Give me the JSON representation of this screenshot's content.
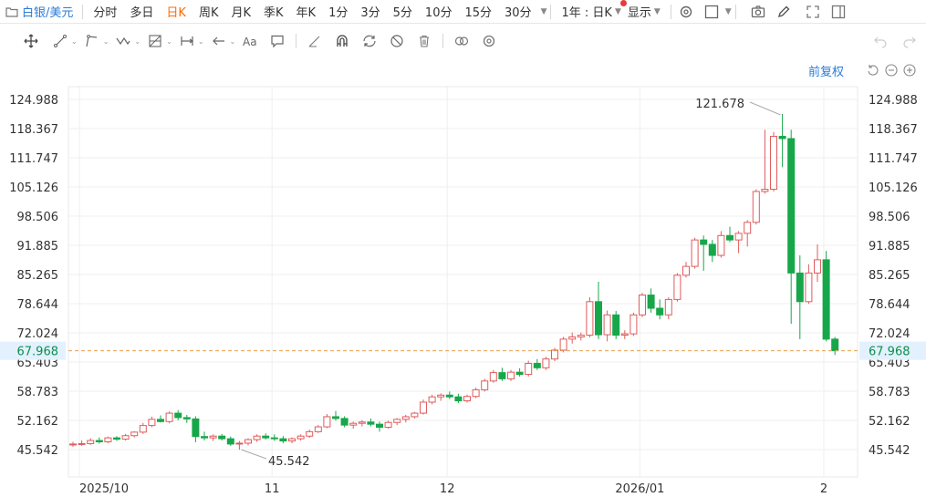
{
  "toolbar": {
    "symbol": "白银/美元",
    "timeframes": [
      "分时",
      "多日",
      "日K",
      "周K",
      "月K",
      "季K",
      "年K",
      "1分",
      "3分",
      "5分",
      "10分",
      "15分",
      "30分"
    ],
    "active_timeframe": "日K",
    "range_select": "1年 : 日K",
    "display_label": "显示"
  },
  "chart_header": {
    "adjust_label": "前复权"
  },
  "colors": {
    "up": "#e15b5b",
    "down": "#17a74a",
    "current": "#0b8f4d",
    "dash": "#e8a050",
    "accent": "#2b7bd6",
    "active": "#ff6a00"
  },
  "chart_data": {
    "type": "candlestick",
    "y_ticks": [
      "124.988",
      "118.367",
      "111.747",
      "105.126",
      "98.506",
      "91.885",
      "85.265",
      "78.644",
      "72.024",
      "65.403",
      "58.783",
      "52.162",
      "45.542"
    ],
    "ylim": [
      45.542,
      124.988
    ],
    "x_tick_labels": [
      {
        "label": "2025/10",
        "index": 0
      },
      {
        "label": "11",
        "index": 22
      },
      {
        "label": "12",
        "index": 42
      },
      {
        "label": "2026/01",
        "index": 64
      },
      {
        "label": "2",
        "index": 85
      }
    ],
    "current_price": "67.968",
    "max_annotation": {
      "label": "121.678",
      "value": 121.678,
      "index": 81
    },
    "min_annotation": {
      "label": "45.542",
      "value": 45.542,
      "index": 19
    },
    "candles": [
      {
        "o": 46.6,
        "h": 47.3,
        "l": 46.2,
        "c": 46.8
      },
      {
        "o": 46.8,
        "h": 47.6,
        "l": 46.4,
        "c": 46.9
      },
      {
        "o": 46.9,
        "h": 48.1,
        "l": 46.6,
        "c": 47.6
      },
      {
        "o": 47.6,
        "h": 48.3,
        "l": 46.9,
        "c": 47.3
      },
      {
        "o": 47.3,
        "h": 48.5,
        "l": 47.0,
        "c": 48.2
      },
      {
        "o": 48.2,
        "h": 48.6,
        "l": 47.5,
        "c": 47.9
      },
      {
        "o": 47.9,
        "h": 49.1,
        "l": 47.6,
        "c": 48.7
      },
      {
        "o": 48.7,
        "h": 49.7,
        "l": 48.3,
        "c": 49.5
      },
      {
        "o": 49.5,
        "h": 51.6,
        "l": 49.1,
        "c": 51.0
      },
      {
        "o": 51.0,
        "h": 53.0,
        "l": 50.6,
        "c": 52.4
      },
      {
        "o": 52.4,
        "h": 53.3,
        "l": 51.7,
        "c": 51.9
      },
      {
        "o": 51.9,
        "h": 54.2,
        "l": 51.5,
        "c": 53.8
      },
      {
        "o": 53.8,
        "h": 54.5,
        "l": 52.2,
        "c": 52.8
      },
      {
        "o": 52.8,
        "h": 53.4,
        "l": 51.6,
        "c": 52.5
      },
      {
        "o": 52.5,
        "h": 53.1,
        "l": 47.2,
        "c": 48.5
      },
      {
        "o": 48.5,
        "h": 49.6,
        "l": 47.6,
        "c": 48.2
      },
      {
        "o": 48.2,
        "h": 49.0,
        "l": 47.5,
        "c": 48.6
      },
      {
        "o": 48.6,
        "h": 49.1,
        "l": 47.6,
        "c": 48.0
      },
      {
        "o": 48.0,
        "h": 48.5,
        "l": 46.4,
        "c": 46.8
      },
      {
        "o": 46.8,
        "h": 47.5,
        "l": 45.5,
        "c": 47.0
      },
      {
        "o": 47.0,
        "h": 48.1,
        "l": 46.5,
        "c": 47.8
      },
      {
        "o": 47.8,
        "h": 49.0,
        "l": 47.3,
        "c": 48.6
      },
      {
        "o": 48.6,
        "h": 49.2,
        "l": 47.8,
        "c": 48.2
      },
      {
        "o": 48.2,
        "h": 49.0,
        "l": 47.5,
        "c": 48.0
      },
      {
        "o": 48.0,
        "h": 48.6,
        "l": 47.0,
        "c": 47.5
      },
      {
        "o": 47.5,
        "h": 48.3,
        "l": 47.0,
        "c": 48.0
      },
      {
        "o": 48.0,
        "h": 49.0,
        "l": 47.6,
        "c": 48.6
      },
      {
        "o": 48.6,
        "h": 50.1,
        "l": 48.2,
        "c": 49.6
      },
      {
        "o": 49.6,
        "h": 51.1,
        "l": 49.3,
        "c": 50.7
      },
      {
        "o": 50.7,
        "h": 53.6,
        "l": 50.4,
        "c": 53.0
      },
      {
        "o": 53.0,
        "h": 54.3,
        "l": 52.1,
        "c": 52.6
      },
      {
        "o": 52.6,
        "h": 53.1,
        "l": 50.6,
        "c": 51.1
      },
      {
        "o": 51.1,
        "h": 51.9,
        "l": 50.3,
        "c": 51.5
      },
      {
        "o": 51.5,
        "h": 52.2,
        "l": 50.8,
        "c": 51.8
      },
      {
        "o": 51.8,
        "h": 52.6,
        "l": 50.8,
        "c": 51.3
      },
      {
        "o": 51.3,
        "h": 51.9,
        "l": 49.6,
        "c": 50.6
      },
      {
        "o": 50.6,
        "h": 52.1,
        "l": 50.3,
        "c": 51.7
      },
      {
        "o": 51.7,
        "h": 52.7,
        "l": 51.1,
        "c": 52.4
      },
      {
        "o": 52.4,
        "h": 53.4,
        "l": 51.7,
        "c": 53.0
      },
      {
        "o": 53.0,
        "h": 54.1,
        "l": 52.6,
        "c": 53.8
      },
      {
        "o": 53.8,
        "h": 56.9,
        "l": 53.5,
        "c": 56.3
      },
      {
        "o": 56.3,
        "h": 58.0,
        "l": 55.8,
        "c": 57.5
      },
      {
        "o": 57.5,
        "h": 58.3,
        "l": 56.6,
        "c": 57.9
      },
      {
        "o": 57.9,
        "h": 58.7,
        "l": 57.0,
        "c": 57.5
      },
      {
        "o": 57.5,
        "h": 58.2,
        "l": 56.1,
        "c": 56.6
      },
      {
        "o": 56.6,
        "h": 58.0,
        "l": 56.2,
        "c": 57.6
      },
      {
        "o": 57.6,
        "h": 59.6,
        "l": 57.2,
        "c": 59.1
      },
      {
        "o": 59.1,
        "h": 61.6,
        "l": 58.7,
        "c": 61.1
      },
      {
        "o": 61.1,
        "h": 63.6,
        "l": 60.7,
        "c": 63.0
      },
      {
        "o": 63.0,
        "h": 64.1,
        "l": 61.1,
        "c": 61.6
      },
      {
        "o": 61.6,
        "h": 63.6,
        "l": 61.1,
        "c": 63.1
      },
      {
        "o": 63.1,
        "h": 64.0,
        "l": 62.1,
        "c": 62.6
      },
      {
        "o": 62.6,
        "h": 65.7,
        "l": 62.1,
        "c": 65.1
      },
      {
        "o": 65.1,
        "h": 66.1,
        "l": 63.6,
        "c": 64.1
      },
      {
        "o": 64.1,
        "h": 66.6,
        "l": 63.6,
        "c": 66.1
      },
      {
        "o": 66.1,
        "h": 68.6,
        "l": 65.6,
        "c": 68.1
      },
      {
        "o": 68.1,
        "h": 71.1,
        "l": 67.6,
        "c": 70.6
      },
      {
        "o": 70.6,
        "h": 72.1,
        "l": 69.6,
        "c": 71.1
      },
      {
        "o": 71.1,
        "h": 72.1,
        "l": 70.3,
        "c": 71.5
      },
      {
        "o": 71.5,
        "h": 80.1,
        "l": 71.0,
        "c": 79.1
      },
      {
        "o": 79.1,
        "h": 83.6,
        "l": 70.6,
        "c": 71.6
      },
      {
        "o": 71.6,
        "h": 77.1,
        "l": 70.1,
        "c": 76.1
      },
      {
        "o": 76.1,
        "h": 77.0,
        "l": 70.6,
        "c": 71.5
      },
      {
        "o": 71.5,
        "h": 72.6,
        "l": 70.6,
        "c": 71.8
      },
      {
        "o": 71.8,
        "h": 76.6,
        "l": 71.3,
        "c": 76.1
      },
      {
        "o": 76.1,
        "h": 81.1,
        "l": 75.6,
        "c": 80.6
      },
      {
        "o": 80.6,
        "h": 82.1,
        "l": 76.6,
        "c": 77.6
      },
      {
        "o": 77.6,
        "h": 79.6,
        "l": 75.1,
        "c": 76.1
      },
      {
        "o": 76.1,
        "h": 80.1,
        "l": 75.1,
        "c": 79.6
      },
      {
        "o": 79.6,
        "h": 85.6,
        "l": 79.1,
        "c": 85.1
      },
      {
        "o": 85.1,
        "h": 88.1,
        "l": 84.6,
        "c": 87.1
      },
      {
        "o": 87.1,
        "h": 93.6,
        "l": 86.6,
        "c": 93.1
      },
      {
        "o": 93.1,
        "h": 94.1,
        "l": 86.1,
        "c": 92.1
      },
      {
        "o": 92.1,
        "h": 93.1,
        "l": 88.1,
        "c": 89.6
      },
      {
        "o": 89.6,
        "h": 95.1,
        "l": 89.1,
        "c": 94.1
      },
      {
        "o": 94.1,
        "h": 96.1,
        "l": 92.6,
        "c": 93.1
      },
      {
        "o": 93.1,
        "h": 95.1,
        "l": 90.1,
        "c": 94.6
      },
      {
        "o": 94.6,
        "h": 97.6,
        "l": 91.6,
        "c": 97.1
      },
      {
        "o": 97.1,
        "h": 104.6,
        "l": 96.6,
        "c": 104.1
      },
      {
        "o": 104.1,
        "h": 118.1,
        "l": 103.6,
        "c": 104.6
      },
      {
        "o": 104.6,
        "h": 117.6,
        "l": 104.1,
        "c": 116.6
      },
      {
        "o": 116.6,
        "h": 121.7,
        "l": 109.6,
        "c": 116.1
      },
      {
        "o": 116.1,
        "h": 118.1,
        "l": 74.1,
        "c": 85.6
      },
      {
        "o": 85.6,
        "h": 89.6,
        "l": 70.6,
        "c": 79.1
      },
      {
        "o": 79.1,
        "h": 87.6,
        "l": 78.6,
        "c": 85.6
      },
      {
        "o": 85.6,
        "h": 92.1,
        "l": 83.6,
        "c": 88.6
      },
      {
        "o": 88.6,
        "h": 90.6,
        "l": 70.1,
        "c": 70.6
      },
      {
        "o": 70.6,
        "h": 71.1,
        "l": 67.0,
        "c": 67.968
      }
    ]
  }
}
